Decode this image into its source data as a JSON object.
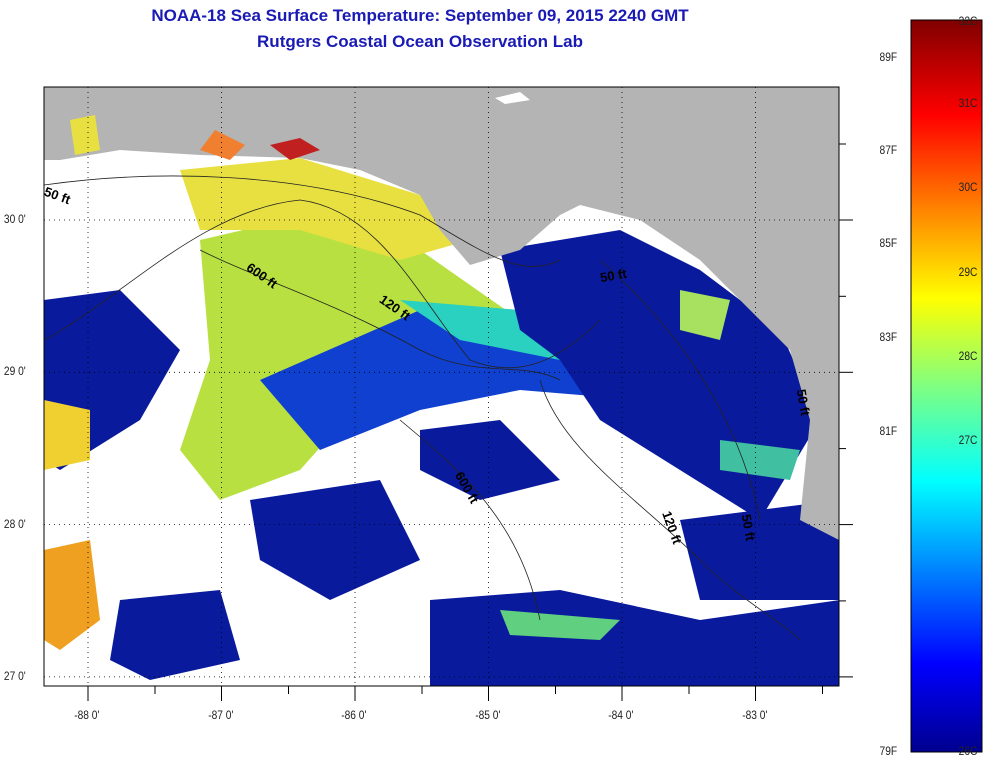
{
  "header": {
    "title": "NOAA-18 Sea Surface Temperature:  September 09, 2015 2240 GMT",
    "subtitle": "Rutgers Coastal Ocean Observation Lab"
  },
  "axes": {
    "lon_ticks": [
      {
        "label": "-88 0'",
        "value": -88
      },
      {
        "label": "-87 0'",
        "value": -87
      },
      {
        "label": "-86 0'",
        "value": -86
      },
      {
        "label": "-85 0'",
        "value": -85
      },
      {
        "label": "-84 0'",
        "value": -84
      },
      {
        "label": "-83 0'",
        "value": -83
      }
    ],
    "lat_ticks": [
      {
        "label": "30 0'",
        "value": 30
      },
      {
        "label": "29 0'",
        "value": 29
      },
      {
        "label": "28 0'",
        "value": 28
      },
      {
        "label": "27 0'",
        "value": 27
      }
    ]
  },
  "contours": [
    {
      "label": "50 ft"
    },
    {
      "label": "600 ft"
    },
    {
      "label": "120 ft"
    },
    {
      "label": "50 ft"
    },
    {
      "label": "600 ft"
    },
    {
      "label": "120 ft"
    },
    {
      "label": "50 ft"
    },
    {
      "label": "50 ft"
    }
  ],
  "colorbar": {
    "celsius": [
      {
        "label": "32C",
        "value": 32
      },
      {
        "label": "31C",
        "value": 31
      },
      {
        "label": "30C",
        "value": 30
      },
      {
        "label": "29C",
        "value": 29
      },
      {
        "label": "28C",
        "value": 28
      },
      {
        "label": "27C",
        "value": 27
      },
      {
        "label": "26C",
        "value": 26
      }
    ],
    "fahrenheit": [
      {
        "label": "89F",
        "value": 89
      },
      {
        "label": "87F",
        "value": 87
      },
      {
        "label": "85F",
        "value": 85
      },
      {
        "label": "83F",
        "value": 83
      },
      {
        "label": "81F",
        "value": 81
      },
      {
        "label": "79F",
        "value": 79
      }
    ]
  },
  "colors": {
    "land": "#b4b4b4",
    "cloud": "#ffffff",
    "title": "#1a1ab4"
  }
}
